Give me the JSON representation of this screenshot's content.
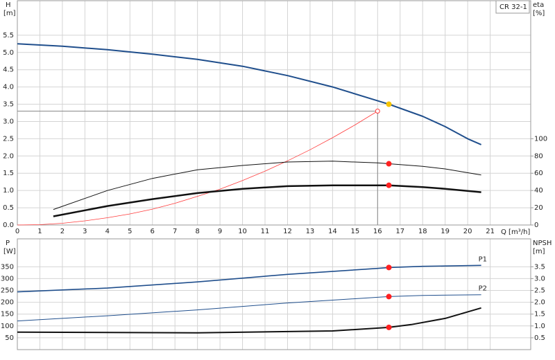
{
  "chart_data": [
    {
      "type": "line",
      "label_box": "CR 32-1",
      "y_label": "H",
      "y_unit": "[m]",
      "y2_label": "eta",
      "y2_unit": "[%]",
      "x_label": "Q [m³/h]",
      "xlim": [
        0,
        22.8
      ],
      "xticks": [
        0,
        1,
        2,
        3,
        4,
        5,
        6,
        7,
        8,
        9,
        10,
        11,
        12,
        13,
        14,
        15,
        16,
        17,
        18,
        19,
        20,
        21
      ],
      "ylim": [
        0,
        6.5
      ],
      "yticks": [
        {
          "value": 0,
          "label": "0.0"
        },
        0.5,
        {
          "value": 1,
          "label": "1.0"
        },
        1.5,
        {
          "value": 2,
          "label": "2.0"
        },
        2.5,
        {
          "value": 3,
          "label": "3.0"
        },
        3.5,
        {
          "value": 4,
          "label": "4.0"
        },
        4.5,
        {
          "value": 5,
          "label": "5.0"
        },
        5.5
      ],
      "y2lim": [
        0,
        260
      ],
      "y2ticks": [
        0,
        20,
        40,
        60,
        80,
        100
      ],
      "grid": true,
      "series": [
        {
          "color": "#1f4e8c",
          "line_width": 2,
          "x": [
            0,
            2,
            4,
            6,
            8,
            10,
            12,
            14,
            16,
            16.5,
            18,
            19,
            20,
            20.6
          ],
          "values": [
            5.25,
            5.18,
            5.08,
            4.95,
            4.8,
            4.6,
            4.33,
            4.0,
            3.6,
            3.5,
            3.15,
            2.85,
            2.5,
            2.33
          ]
        },
        {
          "color": "#ff3b3b",
          "line_width": 0.8,
          "x": [
            0,
            1,
            2,
            3,
            4,
            5,
            6,
            7,
            8,
            9,
            10,
            11,
            12,
            13,
            14,
            15,
            16
          ],
          "values": [
            0,
            0.01,
            0.05,
            0.12,
            0.21,
            0.32,
            0.46,
            0.63,
            0.83,
            1.04,
            1.29,
            1.56,
            1.86,
            2.18,
            2.53,
            2.9,
            3.3
          ]
        },
        {
          "color": "#111111",
          "line_width": 1,
          "axis": "y2",
          "x": [
            1.6,
            4,
            6,
            8,
            10,
            12,
            14,
            16,
            16.5,
            18,
            19,
            20.6
          ],
          "values": [
            18,
            40,
            54,
            64,
            69,
            73,
            74,
            72,
            71,
            68,
            65,
            58
          ]
        },
        {
          "color": "#111111",
          "line_width": 2.5,
          "axis": "y2",
          "x": [
            1.6,
            4,
            6,
            8,
            10,
            12,
            14,
            16.5,
            18,
            19,
            20.6
          ],
          "values": [
            10,
            22,
            30,
            37,
            42,
            45,
            46,
            46,
            44,
            42,
            38
          ]
        }
      ],
      "markers": [
        {
          "x": 16.5,
          "y": 3.5,
          "color": "#f5c400"
        },
        {
          "x": 16,
          "y": 3.3,
          "color": "#ff3b3b",
          "hollow": true,
          "guides": true
        },
        {
          "x": 16.5,
          "y": 71,
          "color": "#ff2020",
          "axis": "y2"
        },
        {
          "x": 16.5,
          "y": 46,
          "color": "#ff2020",
          "axis": "y2"
        }
      ]
    },
    {
      "type": "line",
      "y_label": "P",
      "y_unit": "[W]",
      "y2_label": "NPSH",
      "y2_unit": "[m]",
      "xlim": [
        0,
        22.8
      ],
      "ylim": [
        0,
        468
      ],
      "yticks": [
        50,
        100,
        150,
        200,
        250,
        300,
        350
      ],
      "y2lim": [
        0,
        4.68
      ],
      "y2ticks": [
        0.5,
        {
          "value": 1,
          "label": "1.0"
        },
        1.5,
        {
          "value": 2,
          "label": "2.0"
        },
        2.5,
        {
          "value": 3,
          "label": "3.0"
        },
        3.5
      ],
      "grid": true,
      "series": [
        {
          "name": "P1",
          "color": "#1f4e8c",
          "line_width": 1.6,
          "x": [
            0,
            4,
            8,
            12,
            16,
            16.5,
            18,
            20.6
          ],
          "values": [
            244,
            260,
            286,
            318,
            343,
            347,
            352,
            356
          ]
        },
        {
          "name": "P2",
          "color": "#1f4e8c",
          "line_width": 1,
          "x": [
            0,
            4,
            8,
            12,
            16,
            16.5,
            18,
            20.6
          ],
          "values": [
            121,
            143,
            168,
            197,
            221,
            224,
            229,
            232
          ]
        },
        {
          "color": "#111111",
          "line_width": 2,
          "axis": "y2",
          "x": [
            0,
            8,
            14,
            16.5,
            17.5,
            19,
            20.6
          ],
          "values": [
            0.74,
            0.71,
            0.79,
            0.94,
            1.06,
            1.32,
            1.76
          ]
        }
      ],
      "markers": [
        {
          "x": 16.5,
          "y": 347,
          "color": "#ff2020"
        },
        {
          "x": 16.5,
          "y": 224,
          "color": "#ff2020"
        },
        {
          "x": 16.5,
          "y": 0.94,
          "color": "#ff2020",
          "axis": "y2"
        }
      ]
    }
  ]
}
